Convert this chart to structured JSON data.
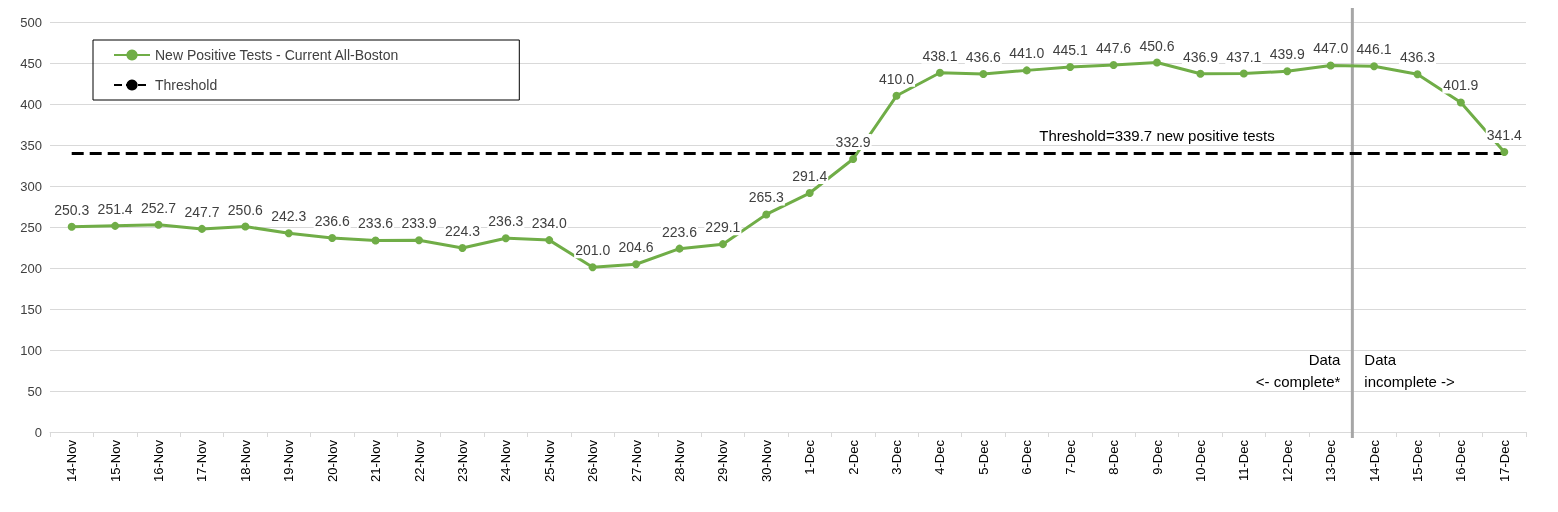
{
  "chart_data": {
    "type": "line",
    "categories": [
      "14-Nov",
      "15-Nov",
      "16-Nov",
      "17-Nov",
      "18-Nov",
      "19-Nov",
      "20-Nov",
      "21-Nov",
      "22-Nov",
      "23-Nov",
      "24-Nov",
      "25-Nov",
      "26-Nov",
      "27-Nov",
      "28-Nov",
      "29-Nov",
      "30-Nov",
      "1-Dec",
      "2-Dec",
      "3-Dec",
      "4-Dec",
      "5-Dec",
      "6-Dec",
      "7-Dec",
      "8-Dec",
      "9-Dec",
      "10-Dec",
      "11-Dec",
      "12-Dec",
      "13-Dec",
      "14-Dec",
      "15-Dec",
      "16-Dec",
      "17-Dec"
    ],
    "series": [
      {
        "name": "New Positive Tests - Current All-Boston",
        "color": "#70ad47",
        "marker": "circle",
        "line_style": "solid",
        "values": [
          250.3,
          251.4,
          252.7,
          247.7,
          250.6,
          242.3,
          236.6,
          233.6,
          233.9,
          224.3,
          236.3,
          234.0,
          201.0,
          204.6,
          223.6,
          229.1,
          265.3,
          291.4,
          332.9,
          410.0,
          438.1,
          436.6,
          441.0,
          445.1,
          447.6,
          450.6,
          436.9,
          437.1,
          439.9,
          447.0,
          446.1,
          436.3,
          401.9,
          341.4
        ],
        "value_labels": [
          "250.3",
          "251.4",
          "252.7",
          "247.7",
          "250.6",
          "242.3",
          "236.6",
          "233.6",
          "233.9",
          "224.3",
          "236.3",
          "234.0",
          "201.0",
          "204.6",
          "223.6",
          "229.1",
          "265.3",
          "291.4",
          "332.9",
          "410.0",
          "438.1",
          "436.6",
          "441.0",
          "445.1",
          "447.6",
          "450.6",
          "436.9",
          "437.1",
          "439.9",
          "447.0",
          "446.1",
          "436.3",
          "401.9",
          "341.4"
        ]
      },
      {
        "name": "Threshold",
        "color": "#000000",
        "marker": "none",
        "line_style": "dashed",
        "values": [
          339.7,
          339.7,
          339.7,
          339.7,
          339.7,
          339.7,
          339.7,
          339.7,
          339.7,
          339.7,
          339.7,
          339.7,
          339.7,
          339.7,
          339.7,
          339.7,
          339.7,
          339.7,
          339.7,
          339.7,
          339.7,
          339.7,
          339.7,
          339.7,
          339.7,
          339.7,
          339.7,
          339.7,
          339.7,
          339.7,
          339.7,
          339.7,
          339.7,
          339.7
        ]
      }
    ],
    "annotations": [
      {
        "text": "Threshold=339.7 new positive tests",
        "x": "9-Dec",
        "y": 339.7
      },
      "Data\n<- complete*",
      "Data\nincomplete ->"
    ],
    "ref_lines": [
      {
        "axis": "x",
        "value": "14-Dec",
        "color": "#a6a6a6",
        "line_style": "solid"
      }
    ],
    "ylim": [
      0,
      500
    ],
    "yticks": [
      0,
      50,
      100,
      150,
      200,
      250,
      300,
      350,
      400,
      450,
      500
    ],
    "grid": "y",
    "legend": "top left"
  }
}
